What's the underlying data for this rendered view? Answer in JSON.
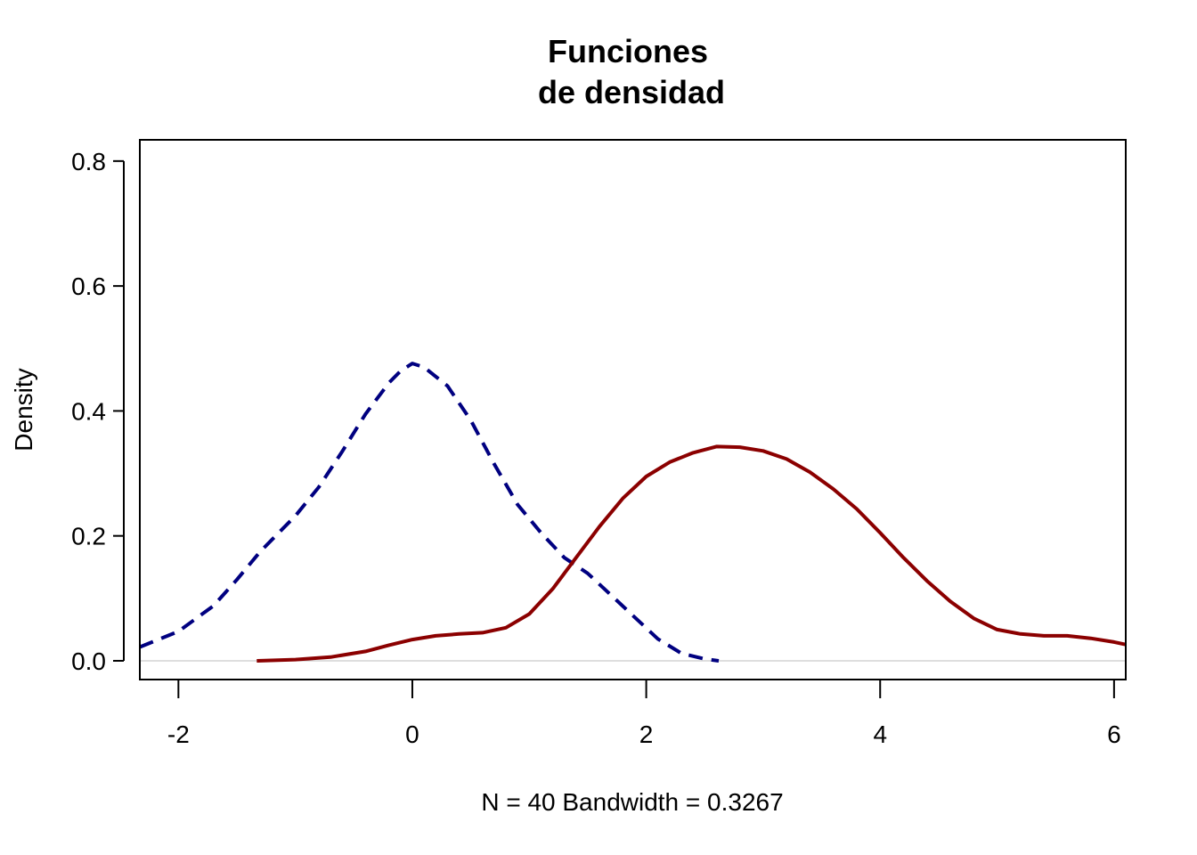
{
  "chart_data": {
    "type": "line",
    "title_lines": [
      "Funciones",
      "de densidad"
    ],
    "xlabel": "N = 40   Bandwidth = 0.3267",
    "ylabel": "Density",
    "xlim": [
      -2.33,
      6.1
    ],
    "ylim": [
      -0.03,
      0.834
    ],
    "x_ticks": [
      -2,
      0,
      2,
      4,
      6
    ],
    "y_ticks": [
      0.0,
      0.2,
      0.4,
      0.6,
      0.8
    ],
    "x_tick_labels": [
      "-2",
      "0",
      "2",
      "4",
      "6"
    ],
    "y_tick_labels": [
      "0.0",
      "0.2",
      "0.4",
      "0.6",
      "0.8"
    ],
    "zero_line": 0.0,
    "grid": false,
    "series": [
      {
        "style": "dashed",
        "color": "#000080",
        "points": [
          [
            -2.33,
            0.022
          ],
          [
            -2.0,
            0.047
          ],
          [
            -1.7,
            0.088
          ],
          [
            -1.5,
            0.13
          ],
          [
            -1.3,
            0.175
          ],
          [
            -1.0,
            0.232
          ],
          [
            -0.8,
            0.278
          ],
          [
            -0.6,
            0.335
          ],
          [
            -0.4,
            0.395
          ],
          [
            -0.2,
            0.445
          ],
          [
            -0.1,
            0.464
          ],
          [
            0.0,
            0.476
          ],
          [
            0.1,
            0.47
          ],
          [
            0.3,
            0.44
          ],
          [
            0.5,
            0.385
          ],
          [
            0.7,
            0.315
          ],
          [
            0.9,
            0.25
          ],
          [
            1.1,
            0.205
          ],
          [
            1.3,
            0.165
          ],
          [
            1.5,
            0.14
          ],
          [
            1.7,
            0.105
          ],
          [
            1.9,
            0.07
          ],
          [
            2.1,
            0.035
          ],
          [
            2.3,
            0.012
          ],
          [
            2.5,
            0.003
          ],
          [
            2.62,
            0.0
          ]
        ]
      },
      {
        "style": "solid",
        "color": "#8b0000",
        "points": [
          [
            -1.33,
            0.0
          ],
          [
            -1.0,
            0.002
          ],
          [
            -0.7,
            0.006
          ],
          [
            -0.4,
            0.015
          ],
          [
            -0.2,
            0.025
          ],
          [
            0.0,
            0.034
          ],
          [
            0.2,
            0.04
          ],
          [
            0.4,
            0.043
          ],
          [
            0.6,
            0.045
          ],
          [
            0.8,
            0.053
          ],
          [
            1.0,
            0.075
          ],
          [
            1.2,
            0.115
          ],
          [
            1.4,
            0.165
          ],
          [
            1.6,
            0.215
          ],
          [
            1.8,
            0.26
          ],
          [
            2.0,
            0.295
          ],
          [
            2.2,
            0.318
          ],
          [
            2.4,
            0.333
          ],
          [
            2.6,
            0.343
          ],
          [
            2.8,
            0.342
          ],
          [
            3.0,
            0.336
          ],
          [
            3.2,
            0.323
          ],
          [
            3.4,
            0.302
          ],
          [
            3.6,
            0.275
          ],
          [
            3.8,
            0.243
          ],
          [
            4.0,
            0.205
          ],
          [
            4.2,
            0.165
          ],
          [
            4.4,
            0.128
          ],
          [
            4.6,
            0.095
          ],
          [
            4.8,
            0.068
          ],
          [
            5.0,
            0.05
          ],
          [
            5.2,
            0.043
          ],
          [
            5.4,
            0.04
          ],
          [
            5.6,
            0.04
          ],
          [
            5.8,
            0.036
          ],
          [
            6.0,
            0.03
          ],
          [
            6.1,
            0.026
          ]
        ]
      }
    ]
  }
}
